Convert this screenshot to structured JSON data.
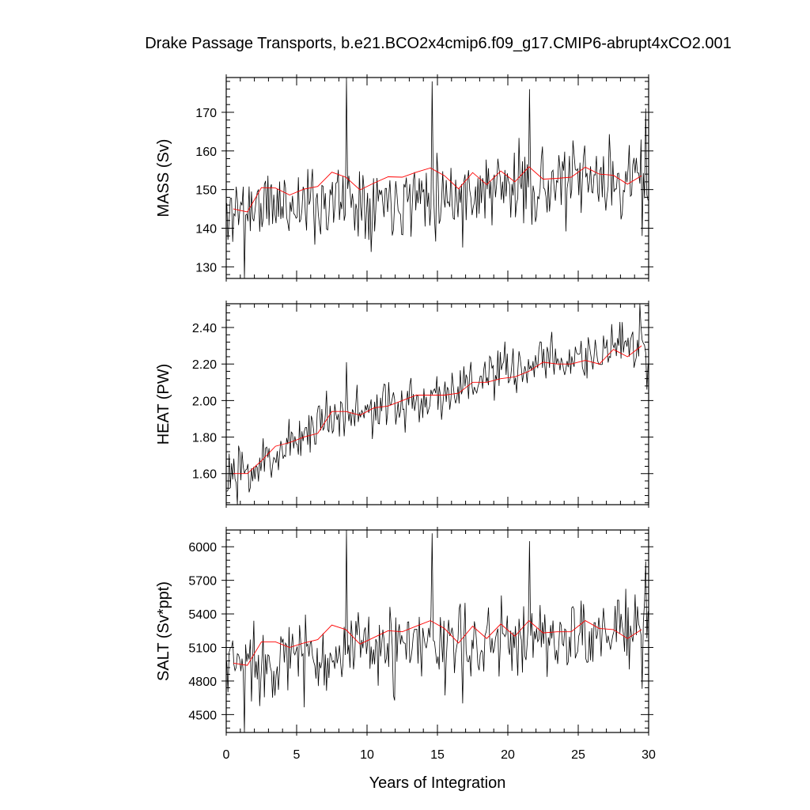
{
  "title": "Drake Passage Transports, b.e21.BCO2x4cmip6.f09_g17.CMIP6-abrupt4xCO2.001",
  "colors": {
    "monthly": "#000000",
    "annual": "#ff0000",
    "axis": "#000000",
    "background": "#ffffff"
  },
  "chart_data": [
    {
      "type": "line",
      "id": "mass",
      "ylabel": "MASS (Sv)",
      "xlim": [
        0,
        30
      ],
      "ylim": [
        127,
        179
      ],
      "yticks": [
        130,
        140,
        150,
        160,
        170
      ],
      "ytick_labels": [
        "130",
        "140",
        "150",
        "160",
        "170"
      ],
      "series": [
        {
          "name": "monthly",
          "seed": 11,
          "base": [
            [
              0,
              145
            ],
            [
              30,
              153
            ]
          ],
          "amplitude": 8.5,
          "extremes": [
            [
              0.15,
              137
            ],
            [
              1.3,
              127
            ],
            [
              8.55,
              179
            ],
            [
              14.6,
              178
            ],
            [
              21.5,
              176
            ],
            [
              29.8,
              171
            ],
            [
              29.5,
              138
            ],
            [
              16.8,
              135
            ]
          ]
        },
        {
          "name": "annual",
          "x": [
            0.5,
            1.5,
            2.5,
            3.5,
            4.5,
            5.5,
            6.5,
            7.5,
            8.5,
            9.5,
            10.5,
            11.5,
            12.5,
            13.5,
            14.5,
            15.5,
            16.5,
            17.5,
            18.5,
            19.5,
            20.5,
            21.5,
            22.5,
            23.5,
            24.5,
            25.5,
            26.5,
            27.5,
            28.5,
            29.5
          ],
          "values": [
            145,
            144.2,
            150.5,
            150.4,
            148.6,
            150.1,
            150.8,
            154.5,
            153.2,
            149.9,
            151.7,
            153.3,
            153.2,
            154.5,
            155.6,
            153.6,
            150.2,
            154.4,
            151.3,
            154.8,
            152,
            155.9,
            152.7,
            152.9,
            153.2,
            155.8,
            154,
            153.7,
            151.4,
            153.6
          ]
        }
      ]
    },
    {
      "type": "line",
      "id": "heat",
      "ylabel": "HEAT (PW)",
      "xlim": [
        0,
        30
      ],
      "ylim": [
        1.43,
        2.53
      ],
      "yticks": [
        1.6,
        1.8,
        2.0,
        2.2,
        2.4
      ],
      "ytick_labels": [
        "1.60",
        "1.80",
        "2.00",
        "2.20",
        "2.40"
      ],
      "series": [
        {
          "name": "monthly",
          "seed": 23,
          "base": [
            [
              0,
              1.6
            ],
            [
              1.5,
              1.6
            ],
            [
              7.5,
              1.93
            ],
            [
              10,
              1.93
            ],
            [
              15.5,
              2.04
            ],
            [
              17.5,
              2.1
            ],
            [
              22,
              2.2
            ],
            [
              30,
              2.3
            ]
          ],
          "amplitude": 0.12,
          "extremes": [
            [
              0.8,
              1.43
            ],
            [
              29.4,
              2.53
            ],
            [
              8.55,
              2.21
            ],
            [
              29.9,
              2.06
            ],
            [
              2.05,
              1.57
            ]
          ]
        },
        {
          "name": "annual",
          "x": [
            0.5,
            1.5,
            2.5,
            3.5,
            4.5,
            5.5,
            6.5,
            7.5,
            8.5,
            9.5,
            10.5,
            11.5,
            12.5,
            13.5,
            14.5,
            15.5,
            16.5,
            17.5,
            18.5,
            19.5,
            20.5,
            21.5,
            22.5,
            23.5,
            24.5,
            25.5,
            26.5,
            27.5,
            28.5,
            29.5
          ],
          "values": [
            1.6,
            1.6,
            1.67,
            1.75,
            1.77,
            1.8,
            1.82,
            1.94,
            1.94,
            1.92,
            1.96,
            1.97,
            2,
            2.03,
            2.03,
            2.03,
            2.04,
            2.1,
            2.1,
            2.12,
            2.13,
            2.16,
            2.21,
            2.2,
            2.2,
            2.22,
            2.2,
            2.28,
            2.24,
            2.3
          ]
        }
      ]
    },
    {
      "type": "line",
      "id": "salt",
      "ylabel": "SALT (Sv*ppt)",
      "xlim": [
        0,
        30
      ],
      "ylim": [
        4340,
        6150
      ],
      "yticks": [
        4500,
        4800,
        5100,
        5400,
        5700,
        6000
      ],
      "ytick_labels": [
        "4500",
        "4800",
        "5100",
        "5400",
        "5700",
        "6000"
      ],
      "series": [
        {
          "name": "monthly",
          "seed": 37,
          "base": [
            [
              0,
              4960
            ],
            [
              30,
              5260
            ]
          ],
          "amplitude": 300,
          "extremes": [
            [
              1.3,
              4340
            ],
            [
              8.55,
              6150
            ],
            [
              14.6,
              6120
            ],
            [
              21.5,
              6050
            ],
            [
              29.8,
              5870
            ],
            [
              0.15,
              4700
            ],
            [
              29.5,
              4730
            ],
            [
              16.8,
              4600
            ]
          ]
        },
        {
          "name": "annual",
          "x": [
            0.5,
            1.5,
            2.5,
            3.5,
            4.5,
            5.5,
            6.5,
            7.5,
            8.5,
            9.5,
            10.5,
            11.5,
            12.5,
            13.5,
            14.5,
            15.5,
            16.5,
            17.5,
            18.5,
            19.5,
            20.5,
            21.5,
            22.5,
            23.5,
            24.5,
            25.5,
            26.5,
            27.5,
            28.5,
            29.5
          ],
          "values": [
            4960,
            4940,
            5150,
            5150,
            5100,
            5140,
            5170,
            5300,
            5260,
            5130,
            5190,
            5250,
            5240,
            5290,
            5340,
            5270,
            5140,
            5290,
            5180,
            5310,
            5200,
            5340,
            5230,
            5240,
            5240,
            5340,
            5270,
            5260,
            5180,
            5260
          ]
        }
      ]
    }
  ],
  "xaxis": {
    "label": "Years of Integration",
    "ticks": [
      0,
      5,
      10,
      15,
      20,
      25,
      30
    ],
    "tick_labels": [
      "0",
      "5",
      "10",
      "15",
      "20",
      "25",
      "30"
    ]
  }
}
